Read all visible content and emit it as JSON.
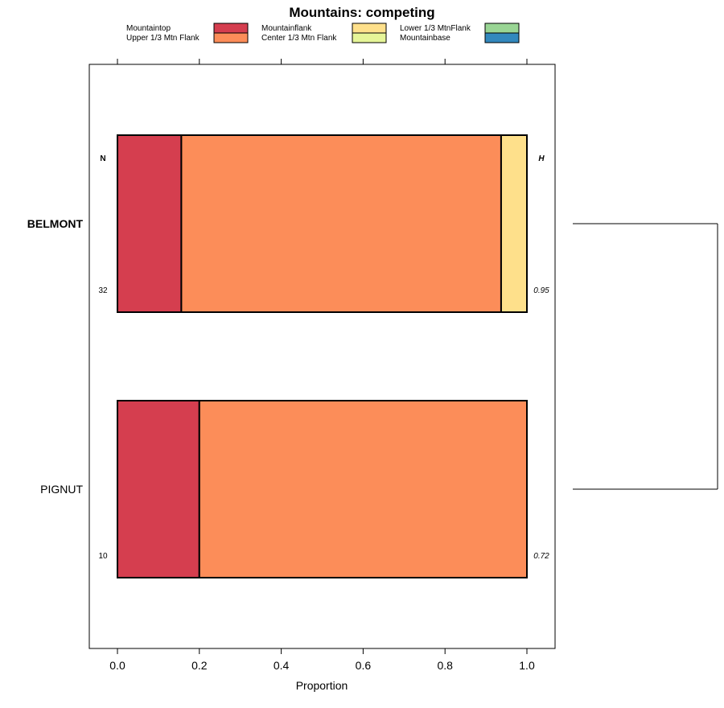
{
  "chart_data": {
    "type": "bar",
    "orientation": "horizontal",
    "stacked": true,
    "title": "Mountains: competing",
    "xlabel": "Proportion",
    "ylabel": "",
    "xlim": [
      -0.07,
      1.07
    ],
    "xticks": [
      {
        "value": 0.0,
        "label": "0.0"
      },
      {
        "value": 0.2,
        "label": "0.2"
      },
      {
        "value": 0.4,
        "label": "0.4"
      },
      {
        "value": 0.6,
        "label": "0.6"
      },
      {
        "value": 0.8,
        "label": "0.8"
      },
      {
        "value": 1.0,
        "label": "1.0"
      }
    ],
    "left_header": "N",
    "right_header": "H",
    "legend": [
      {
        "name": "Mountaintop",
        "color": "#d53e4f"
      },
      {
        "name": "Upper 1/3 Mtn Flank",
        "color": "#fc8d59"
      },
      {
        "name": "Mountainflank",
        "color": "#fee08b"
      },
      {
        "name": "Center 1/3 Mtn Flank",
        "color": "#e6f598"
      },
      {
        "name": "Lower 1/3 MtnFlank",
        "color": "#99d594"
      },
      {
        "name": "Mountainbase",
        "color": "#3288bd"
      }
    ],
    "categories": [
      {
        "name": "BELMONT",
        "bold": true,
        "n": "32",
        "h": "0.95"
      },
      {
        "name": "PIGNUT",
        "bold": false,
        "n": "10",
        "h": "0.72"
      }
    ],
    "series": [
      {
        "name": "Mountaintop",
        "values": [
          0.156,
          0.2
        ]
      },
      {
        "name": "Upper 1/3 Mtn Flank",
        "values": [
          0.781,
          0.8
        ]
      },
      {
        "name": "Mountainflank",
        "values": [
          0.063,
          0.0
        ]
      },
      {
        "name": "Center 1/3 Mtn Flank",
        "values": [
          0.0,
          0.0
        ]
      },
      {
        "name": "Lower 1/3 MtnFlank",
        "values": [
          0.0,
          0.0
        ]
      },
      {
        "name": "Mountainbase",
        "values": [
          0.0,
          0.0
        ]
      }
    ],
    "dendrogram": {
      "merged": [
        "BELMONT",
        "PIGNUT"
      ]
    }
  }
}
